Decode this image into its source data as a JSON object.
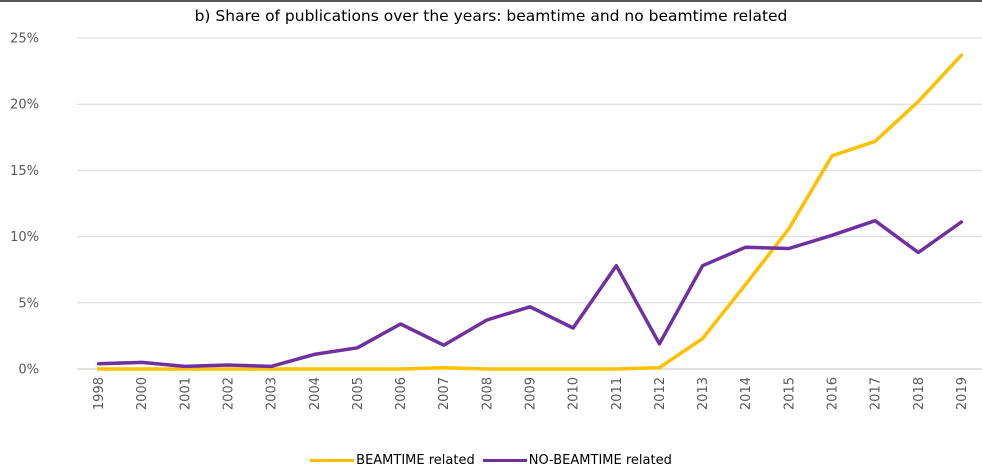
{
  "chart_data": {
    "type": "line",
    "title": "b) Share of publications over the years: beamtime and no beamtime related",
    "xlabel": "",
    "ylabel": "",
    "categories": [
      "1998",
      "2000",
      "2001",
      "2002",
      "2003",
      "2004",
      "2005",
      "2006",
      "2007",
      "2008",
      "2009",
      "2010",
      "2011",
      "2012",
      "2013",
      "2014",
      "2015",
      "2016",
      "2017",
      "2018",
      "2019"
    ],
    "ylim": [
      0,
      25
    ],
    "yticks": [
      "0%",
      "5%",
      "10%",
      "15%",
      "20%",
      "25%"
    ],
    "grid": true,
    "legend_position": "bottom",
    "series": [
      {
        "name": "BEAMTIME related",
        "color": "#FFC000",
        "values": [
          0,
          0,
          0,
          0,
          0,
          0,
          0,
          0,
          0.1,
          0,
          0,
          0,
          0,
          0.1,
          2.3,
          6.4,
          10.6,
          16.1,
          17.2,
          20.2,
          23.7
        ]
      },
      {
        "name": "NO-BEAMTIME related",
        "color": "#7030A0",
        "values": [
          0.4,
          0.5,
          0.2,
          0.3,
          0.2,
          1.1,
          1.6,
          3.4,
          1.8,
          3.7,
          4.7,
          3.1,
          7.8,
          1.9,
          7.8,
          9.2,
          9.1,
          10.1,
          11.2,
          8.8,
          11.1
        ]
      }
    ]
  }
}
